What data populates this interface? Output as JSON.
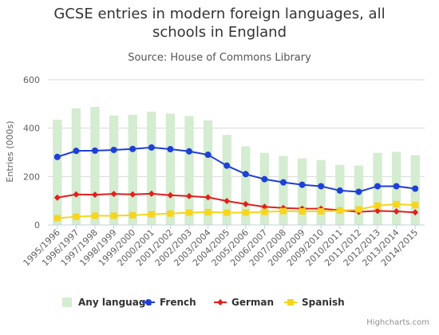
{
  "chart_data": {
    "type": "bar",
    "title_line1": "GCSE entries in modern foreign languages, all",
    "title_line2": "schools in England",
    "subtitle": "Source: House of Commons Library",
    "ylabel": "Entries (000s)",
    "ylim": [
      0,
      600
    ],
    "yticks": [
      0,
      200,
      400,
      600
    ],
    "categories": [
      "1995/1996",
      "1996/1997",
      "1997/1998",
      "1998/1999",
      "1999/2000",
      "2000/2001",
      "2001/2002",
      "2002/2003",
      "2003/2004",
      "2004/2005",
      "2005/2006",
      "2006/2007",
      "2007/2008",
      "2008/2009",
      "2009/2010",
      "2010/2011",
      "2011/2012",
      "2012/2013",
      "2013/2014",
      "2014/2015"
    ],
    "grid": true,
    "legend_position": "bottom",
    "series": [
      {
        "name": "Any language",
        "type": "column",
        "color": "#d4ecd0",
        "values": [
          435,
          482,
          488,
          452,
          455,
          468,
          460,
          450,
          432,
          372,
          325,
          298,
          285,
          275,
          268,
          248,
          245,
          298,
          302,
          288
        ]
      },
      {
        "name": "French",
        "type": "line",
        "color": "#1f3fd8",
        "values": [
          281,
          306,
          307,
          310,
          314,
          320,
          313,
          304,
          290,
          245,
          210,
          189,
          176,
          166,
          160,
          142,
          137,
          160,
          160,
          150
        ]
      },
      {
        "name": "German",
        "type": "line",
        "color": "#e02020",
        "values": [
          113,
          126,
          125,
          128,
          126,
          129,
          123,
          119,
          114,
          99,
          86,
          75,
          70,
          67,
          67,
          61,
          54,
          58,
          56,
          52
        ]
      },
      {
        "name": "Spanish",
        "type": "line",
        "color": "#f7d51d",
        "values": [
          28,
          34,
          38,
          38,
          40,
          44,
          47,
          51,
          53,
          51,
          51,
          54,
          57,
          56,
          56,
          59,
          64,
          80,
          86,
          82
        ]
      }
    ]
  },
  "credit": "Highcharts.com"
}
